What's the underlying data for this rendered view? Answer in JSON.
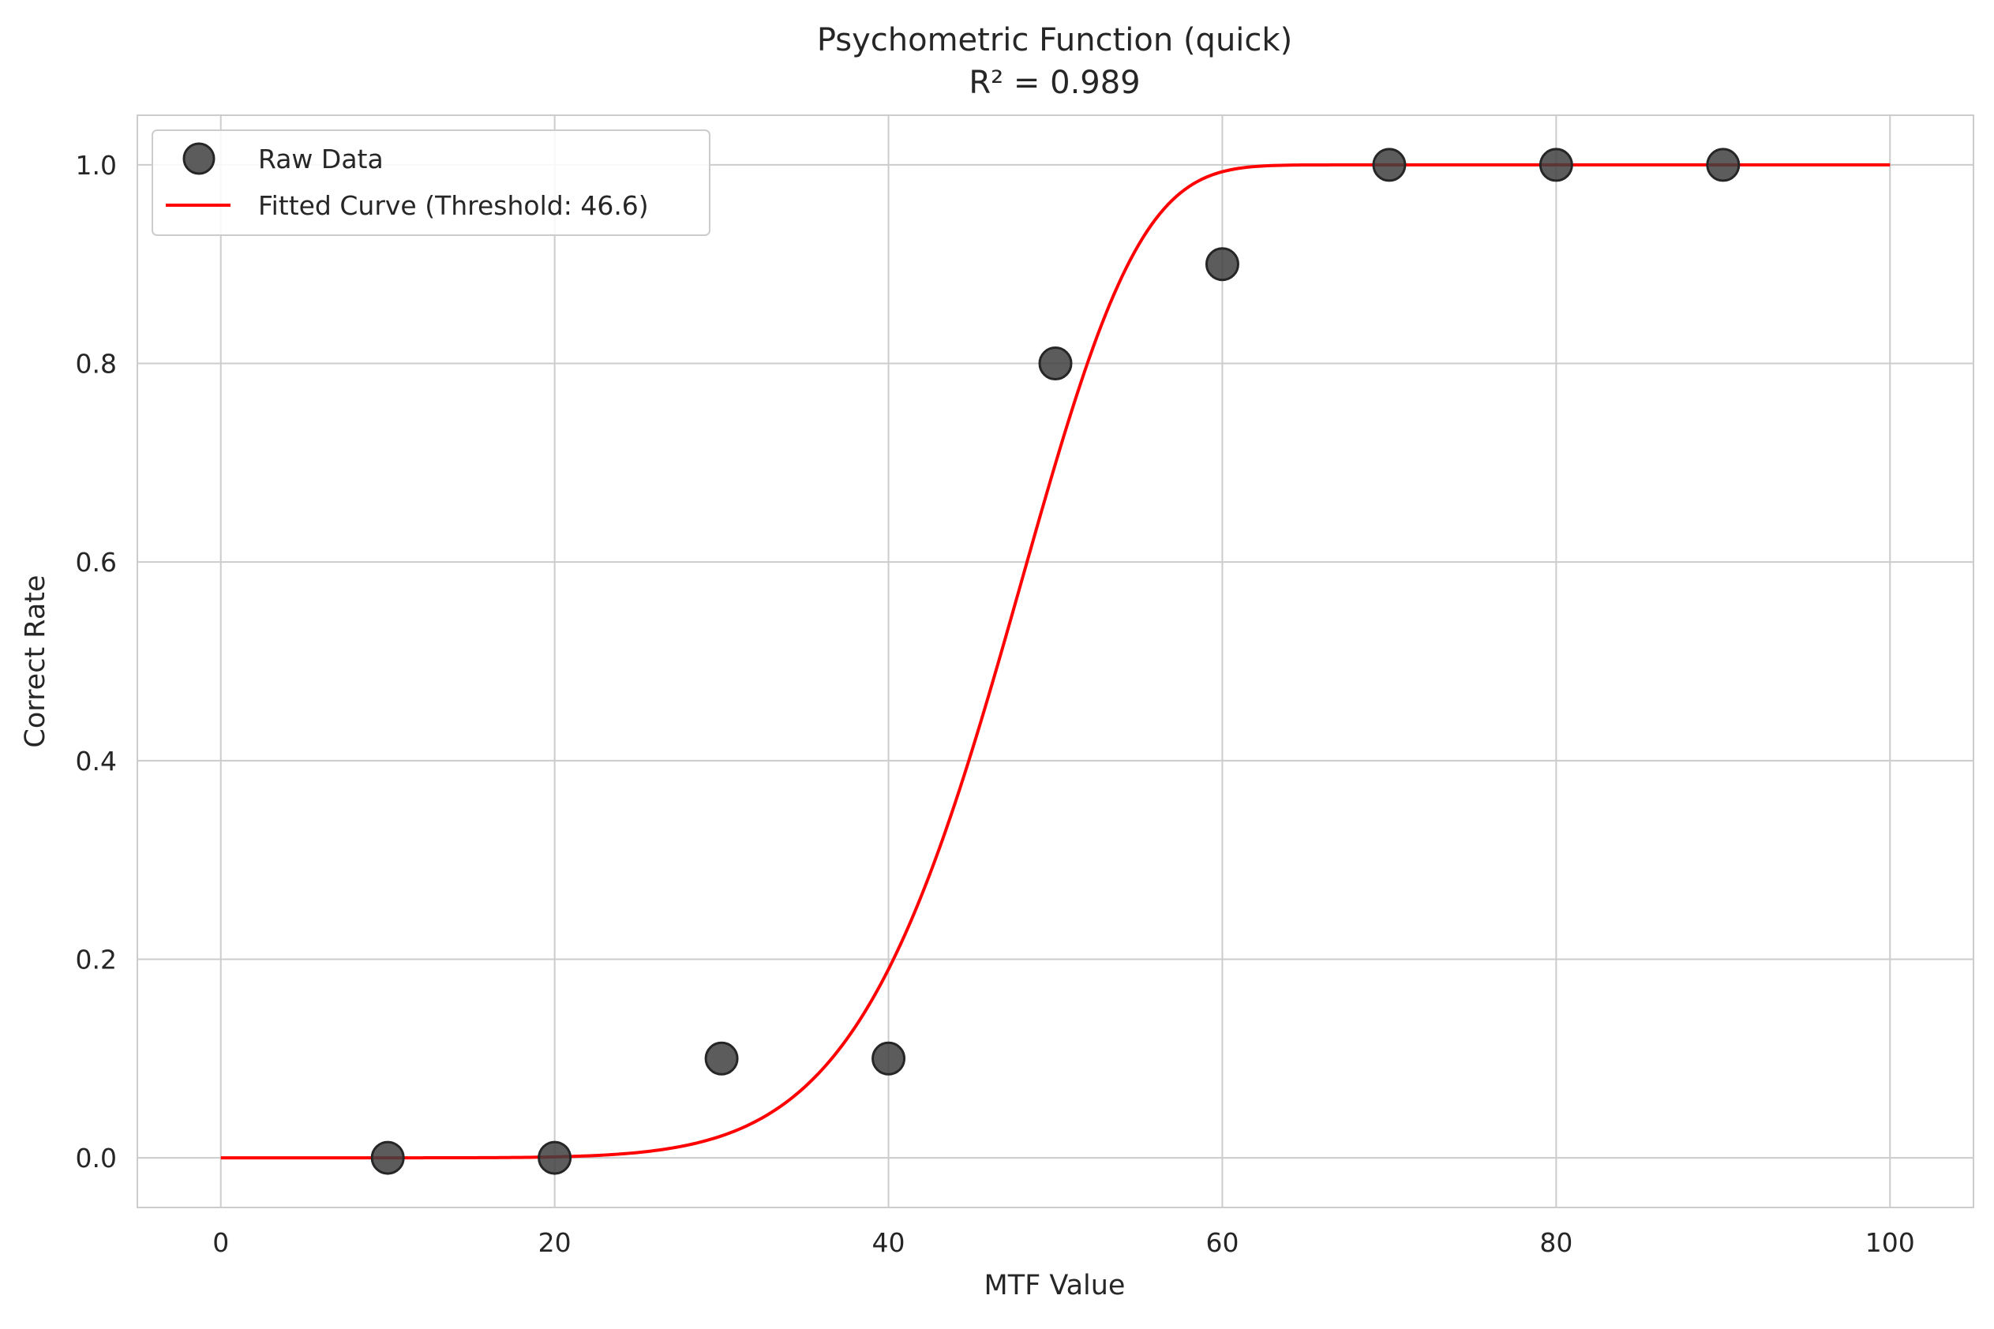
{
  "chart_data": {
    "type": "scatter",
    "title": "Psychometric Function (quick)",
    "subtitle": "R² = 0.989",
    "xlabel": "MTF Value",
    "ylabel": "Correct Rate",
    "xlim": [
      -5,
      105
    ],
    "ylim": [
      -0.05,
      1.05
    ],
    "x_ticks": [
      0,
      20,
      40,
      60,
      80,
      100
    ],
    "x_tick_labels": [
      "0",
      "20",
      "40",
      "60",
      "80",
      "100"
    ],
    "y_ticks": [
      0.0,
      0.2,
      0.4,
      0.6,
      0.8,
      1.0
    ],
    "y_tick_labels": [
      "0.0",
      "0.2",
      "0.4",
      "0.6",
      "0.8",
      "1.0"
    ],
    "grid": true,
    "legend_position": "upper-left",
    "series": [
      {
        "name": "Raw Data",
        "kind": "scatter",
        "color": "#3f3f3f",
        "x": [
          10,
          20,
          30,
          40,
          50,
          60,
          70,
          80,
          90
        ],
        "y": [
          0.0,
          0.0,
          0.1,
          0.1,
          0.8,
          0.9,
          1.0,
          1.0,
          1.0
        ]
      },
      {
        "name": "Fitted Curve (Threshold: 46.6)",
        "kind": "line",
        "color": "#ff0000",
        "function": "weibull",
        "threshold": 46.6,
        "x_range": [
          0,
          100
        ]
      }
    ]
  }
}
